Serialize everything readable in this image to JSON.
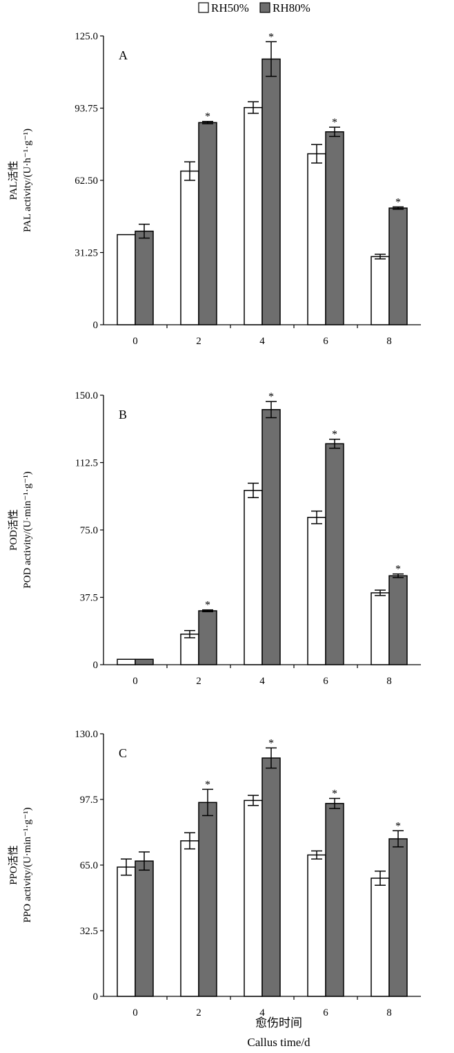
{
  "legend": [
    {
      "label": "RH50%",
      "color": "#ffffff"
    },
    {
      "label": "RH80%",
      "color": "#6e6e6e"
    }
  ],
  "x_axis_title_cn": "愈伤时间",
  "x_axis_title_en": "Callus time/d",
  "chart_data": [
    {
      "type": "bar",
      "panel": "A",
      "categories": [
        "0",
        "2",
        "4",
        "6",
        "8"
      ],
      "ylabel_cn": "PAL活性",
      "ylabel_en": "PAL activity/(U·h⁻¹·g⁻¹)",
      "ylim": [
        0,
        125
      ],
      "yticks": [
        "0",
        "31.25",
        "62.50",
        "93.75",
        "125.0"
      ],
      "series": [
        {
          "name": "RH50%",
          "values": [
            39.0,
            66.5,
            94.0,
            74.0,
            29.5
          ],
          "errors": [
            0,
            4.0,
            2.5,
            4.0,
            1.0
          ]
        },
        {
          "name": "RH80%",
          "values": [
            40.5,
            87.5,
            115.0,
            83.5,
            50.5
          ],
          "errors": [
            3.0,
            0.5,
            7.5,
            2.0,
            0.5
          ]
        }
      ],
      "significant": [
        false,
        true,
        true,
        true,
        true
      ]
    },
    {
      "type": "bar",
      "panel": "B",
      "categories": [
        "0",
        "2",
        "4",
        "6",
        "8"
      ],
      "ylabel_cn": "POD活性",
      "ylabel_en": "POD activity/(U·min⁻¹·g⁻¹)",
      "ylim": [
        0,
        150
      ],
      "yticks": [
        "0",
        "37.5",
        "75.0",
        "112.5",
        "150.0"
      ],
      "series": [
        {
          "name": "RH50%",
          "values": [
            3.0,
            17.0,
            97.0,
            82.0,
            40.0
          ],
          "errors": [
            0,
            2.0,
            4.0,
            3.5,
            1.5
          ]
        },
        {
          "name": "RH80%",
          "values": [
            3.0,
            30.0,
            142.0,
            123.0,
            49.5
          ],
          "errors": [
            0,
            0.5,
            4.5,
            2.5,
            1.0
          ]
        }
      ],
      "significant": [
        false,
        true,
        true,
        true,
        true
      ]
    },
    {
      "type": "bar",
      "panel": "C",
      "categories": [
        "0",
        "2",
        "4",
        "6",
        "8"
      ],
      "ylabel_cn": "PPO活性",
      "ylabel_en": "PPO activity/(U·min⁻¹·g⁻¹)",
      "ylim": [
        0,
        130
      ],
      "yticks": [
        "0",
        "32.5",
        "65.0",
        "97.5",
        "130.0"
      ],
      "series": [
        {
          "name": "RH50%",
          "values": [
            64.0,
            77.0,
            97.0,
            70.0,
            58.5
          ],
          "errors": [
            4.0,
            4.0,
            2.5,
            2.0,
            3.5
          ]
        },
        {
          "name": "RH80%",
          "values": [
            67.0,
            96.0,
            118.0,
            95.5,
            78.0
          ],
          "errors": [
            4.5,
            6.5,
            5.0,
            2.5,
            4.0
          ]
        }
      ],
      "significant": [
        false,
        true,
        true,
        true,
        true
      ]
    }
  ]
}
